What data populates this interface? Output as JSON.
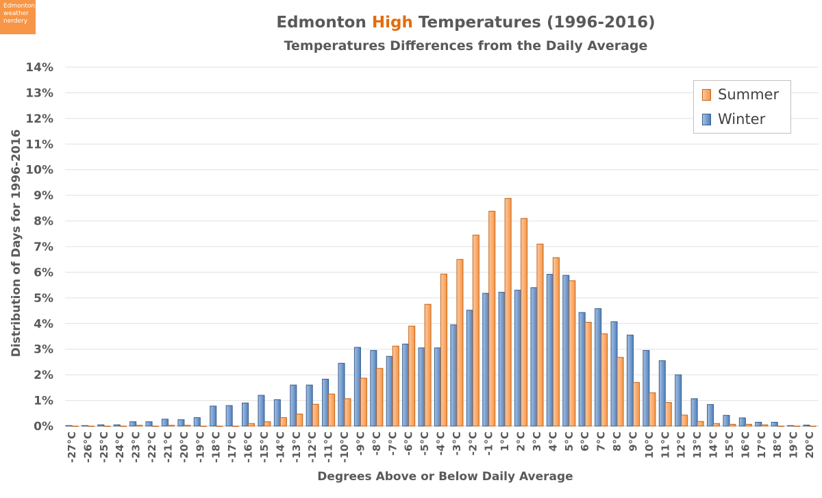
{
  "logo_text": "Edmonton weather nerdery",
  "chart_data": {
    "type": "bar",
    "title_parts": [
      "Edmonton ",
      "High",
      " Temperatures (1996-2016)"
    ],
    "subtitle": "Temperatures Differences from the Daily Average",
    "xlabel": "Degrees Above or Below Daily Average",
    "ylabel": "Distribution of Days for 1996-2016",
    "ylim": [
      0,
      14
    ],
    "yticks": [
      "0%",
      "1%",
      "2%",
      "3%",
      "4%",
      "5%",
      "6%",
      "7%",
      "8%",
      "9%",
      "10%",
      "11%",
      "12%",
      "13%",
      "14%"
    ],
    "grid": true,
    "legend_position": "top-right",
    "categories": [
      "-27°C",
      "-26°C",
      "-25°C",
      "-24°C",
      "-23°C",
      "-22°C",
      "-21°C",
      "-20°C",
      "-19°C",
      "-18°C",
      "-17°C",
      "-16°C",
      "-15°C",
      "-14°C",
      "-13°C",
      "-12°C",
      "-11°C",
      "-10°C",
      "-9°C",
      "-8°C",
      "-7°C",
      "-6°C",
      "-5°C",
      "-4°C",
      "-3°C",
      "-2°C",
      "-1°C",
      "1°C",
      "2°C",
      "3°C",
      "4°C",
      "5°C",
      "6°C",
      "7°C",
      "8°C",
      "9°C",
      "10°C",
      "11°C",
      "12°C",
      "13°C",
      "14°C",
      "15°C",
      "16°C",
      "17°C",
      "18°C",
      "19°C",
      "20°C"
    ],
    "series": [
      {
        "name": "Winter",
        "color": "#4f81bd",
        "values": [
          0.02,
          0.02,
          0.05,
          0.05,
          0.17,
          0.17,
          0.27,
          0.25,
          0.33,
          0.78,
          0.8,
          0.9,
          1.2,
          1.03,
          1.6,
          1.6,
          1.83,
          2.45,
          3.07,
          2.95,
          2.72,
          3.2,
          3.05,
          3.05,
          3.95,
          4.52,
          5.18,
          5.22,
          5.3,
          5.4,
          5.92,
          5.88,
          4.43,
          4.58,
          4.07,
          3.55,
          2.95,
          2.55,
          2.0,
          1.07,
          0.84,
          0.42,
          0.32,
          0.15,
          0.15,
          0.02,
          0.04
        ]
      },
      {
        "name": "Summer",
        "color": "#f79646",
        "values": [
          0,
          0,
          0,
          0,
          0.03,
          0,
          0.03,
          0.03,
          0,
          0,
          0,
          0.1,
          0.17,
          0.33,
          0.47,
          0.85,
          1.25,
          1.07,
          1.87,
          2.25,
          3.12,
          3.9,
          4.75,
          5.93,
          6.5,
          7.45,
          8.38,
          8.88,
          8.1,
          7.1,
          6.57,
          5.67,
          4.05,
          3.6,
          2.68,
          1.7,
          1.3,
          0.92,
          0.43,
          0.18,
          0.1,
          0.07,
          0.07,
          0.05,
          0,
          0,
          0
        ]
      }
    ],
    "legend_order": [
      "Summer",
      "Winter"
    ]
  }
}
